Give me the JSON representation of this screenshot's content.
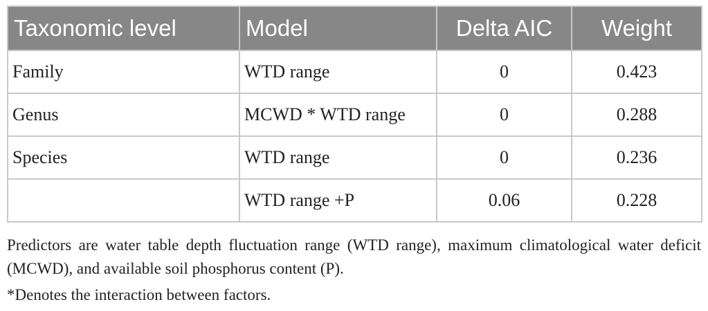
{
  "table": {
    "headers": [
      "Taxonomic level",
      "Model",
      "Delta AIC",
      "Weight"
    ],
    "rows": [
      [
        "Family",
        "WTD range",
        "0",
        "0.423"
      ],
      [
        "Genus",
        "MCWD * WTD range",
        "0",
        "0.288"
      ],
      [
        "Species",
        "WTD range",
        "0",
        "0.236"
      ],
      [
        "",
        "WTD range +P",
        "0.06",
        "0.228"
      ]
    ]
  },
  "footnotes": {
    "predictors": "Predictors are water table depth fluctuation range (WTD range), maximum climatological water deficit (MCWD), and available soil phosphorus content (P).",
    "interaction": "*Denotes the interaction between factors."
  },
  "colors": {
    "header_bg": "#878787",
    "header_text": "#ffffff",
    "border": "#c8c8c8"
  }
}
